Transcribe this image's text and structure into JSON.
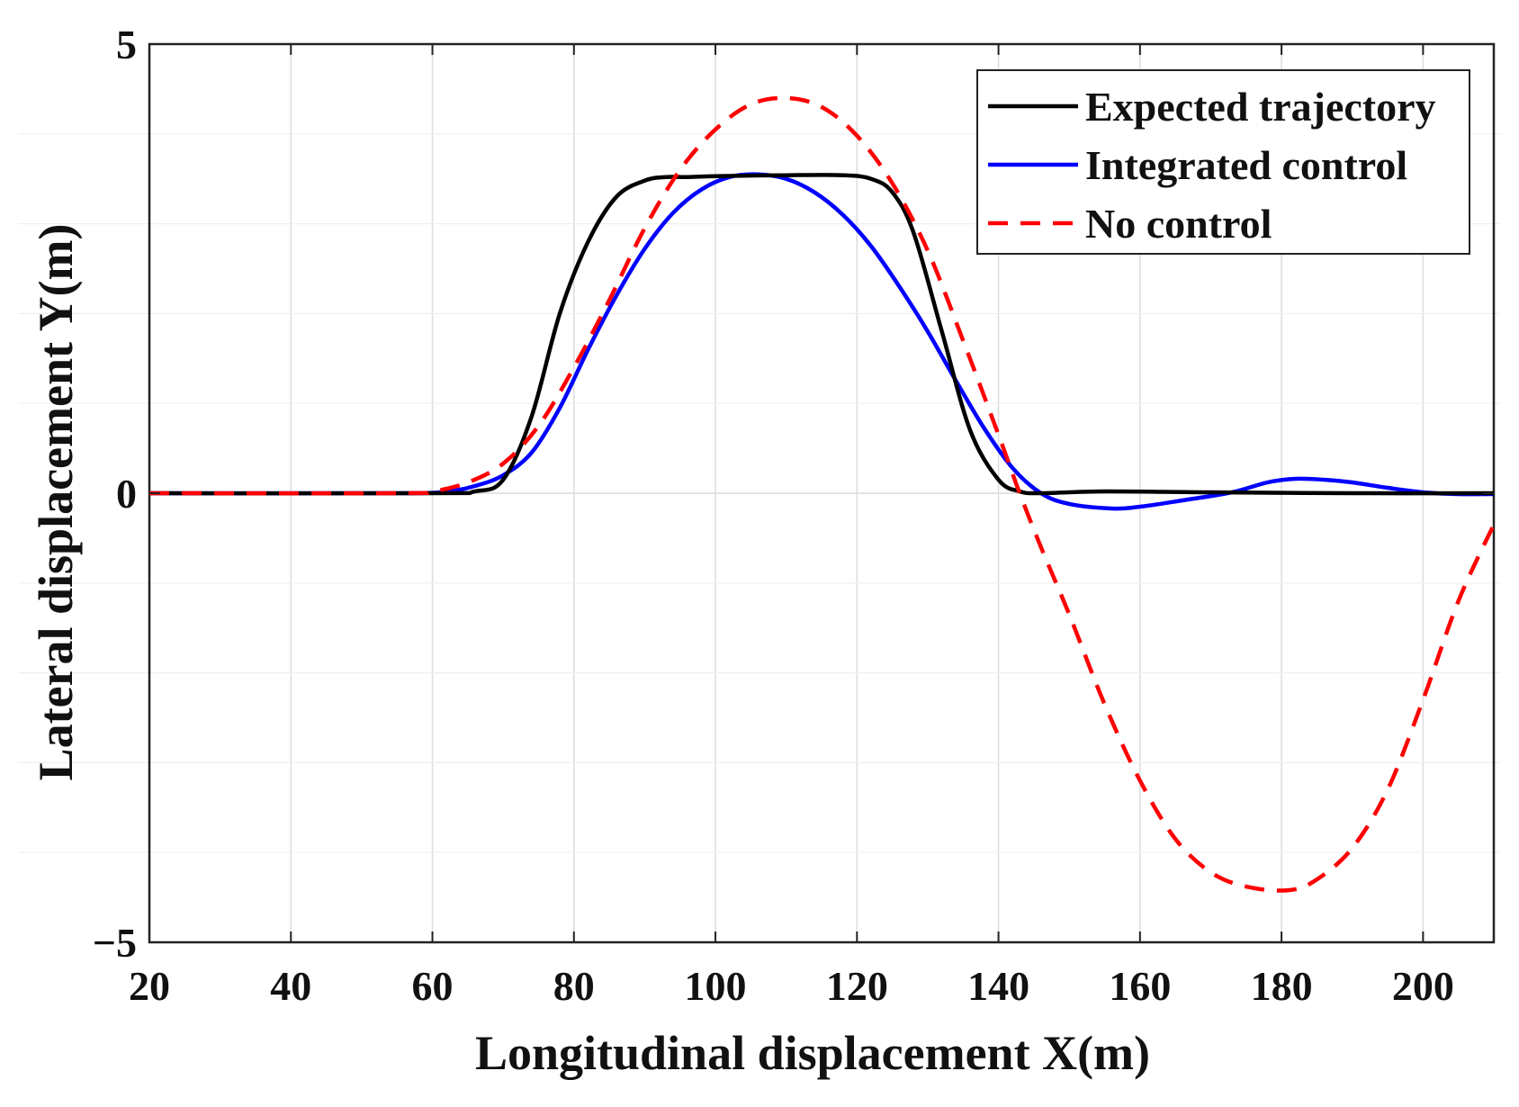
{
  "chart_data": {
    "type": "line",
    "title": "",
    "xlabel": "Longitudinal displacement X(m)",
    "ylabel": "Lateral displacement Y(m)",
    "xlim": [
      20,
      210
    ],
    "ylim": [
      -5,
      5
    ],
    "grid": true,
    "legend_position": "top-right",
    "x_ticks": [
      20,
      40,
      60,
      80,
      100,
      120,
      140,
      160,
      180,
      200
    ],
    "x_tick_labels": [
      "20",
      "40",
      "60",
      "80",
      "100",
      "120",
      "140",
      "160",
      "180",
      "200"
    ],
    "y_ticks": [
      -5,
      0,
      5
    ],
    "y_tick_labels": [
      "−5",
      "0",
      "5"
    ],
    "series": [
      {
        "name": "Expected trajectory",
        "color": "#000000",
        "style": "solid",
        "x": [
          20,
          60,
          66,
          70,
          74,
          78,
          82,
          86,
          90,
          93,
          96,
          100,
          110,
          118,
          122,
          125,
          128,
          132,
          136,
          140,
          143,
          146,
          155,
          170,
          190,
          210
        ],
        "y": [
          0,
          0,
          0.02,
          0.15,
          0.85,
          2.0,
          2.8,
          3.3,
          3.48,
          3.52,
          3.52,
          3.53,
          3.54,
          3.54,
          3.5,
          3.35,
          2.9,
          1.8,
          0.7,
          0.15,
          0.02,
          0.0,
          0.02,
          0.01,
          0.0,
          0.0
        ]
      },
      {
        "name": "Integrated control",
        "color": "#0000ff",
        "style": "solid",
        "x": [
          20,
          55,
          62,
          66,
          70,
          74,
          78,
          82,
          86,
          90,
          94,
          98,
          102,
          106,
          110,
          114,
          118,
          122,
          126,
          130,
          134,
          138,
          142,
          146,
          150,
          156,
          160,
          166,
          173,
          178,
          182,
          186,
          190,
          195,
          200,
          205,
          210
        ],
        "y": [
          0,
          0,
          0.02,
          0.08,
          0.2,
          0.45,
          0.95,
          1.6,
          2.2,
          2.72,
          3.12,
          3.38,
          3.52,
          3.55,
          3.5,
          3.35,
          3.1,
          2.75,
          2.3,
          1.8,
          1.25,
          0.72,
          0.28,
          0.0,
          -0.12,
          -0.17,
          -0.15,
          -0.08,
          0.01,
          0.12,
          0.16,
          0.15,
          0.12,
          0.06,
          0.01,
          -0.01,
          -0.01
        ]
      },
      {
        "name": "No control",
        "color": "#ff0000",
        "style": "dashed",
        "x": [
          20,
          55,
          60,
          65,
          70,
          75,
          80,
          85,
          90,
          95,
          100,
          105,
          110,
          115,
          120,
          125,
          130,
          135,
          140,
          143,
          146,
          150,
          155,
          160,
          165,
          170,
          175,
          181,
          185,
          190,
          195,
          200,
          205,
          210
        ],
        "y": [
          0,
          0,
          0.02,
          0.12,
          0.33,
          0.75,
          1.4,
          2.15,
          2.95,
          3.6,
          4.05,
          4.33,
          4.4,
          4.3,
          3.98,
          3.45,
          2.7,
          1.7,
          0.65,
          0.0,
          -0.6,
          -1.35,
          -2.35,
          -3.2,
          -3.85,
          -4.22,
          -4.38,
          -4.42,
          -4.3,
          -3.95,
          -3.3,
          -2.3,
          -1.2,
          -0.35
        ]
      }
    ]
  }
}
